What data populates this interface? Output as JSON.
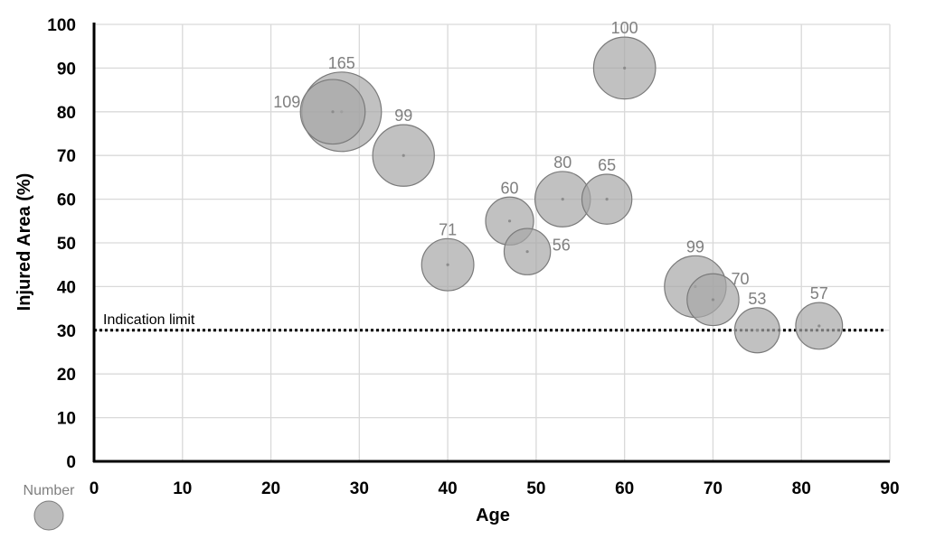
{
  "chart_data": {
    "type": "scatter",
    "subtype": "bubble",
    "xlabel": "Age",
    "ylabel": "Injured Area (%)",
    "xlim": [
      0,
      90
    ],
    "ylim": [
      0,
      100
    ],
    "x_ticks": [
      "0",
      "10",
      "20",
      "30",
      "40",
      "50",
      "60",
      "70",
      "80",
      "90"
    ],
    "y_ticks": [
      "0",
      "10",
      "20",
      "30",
      "40",
      "50",
      "60",
      "70",
      "80",
      "90",
      "100"
    ],
    "grid": true,
    "legend": {
      "title": "Number",
      "placement": "bottom-left"
    },
    "bubble_color": "#a6a6a6",
    "bubble_edge_color": "#7a7a7a",
    "series": [
      {
        "points": [
          {
            "x": 28,
            "y": 80,
            "size": 165,
            "label": "165"
          },
          {
            "x": 27,
            "y": 80,
            "size": 109,
            "label": "109"
          },
          {
            "x": 35,
            "y": 70,
            "size": 99,
            "label": "99"
          },
          {
            "x": 40,
            "y": 45,
            "size": 71,
            "label": "71"
          },
          {
            "x": 47,
            "y": 55,
            "size": 60,
            "label": "60"
          },
          {
            "x": 49,
            "y": 48,
            "size": 56,
            "label": "56"
          },
          {
            "x": 53,
            "y": 60,
            "size": 80,
            "label": "80"
          },
          {
            "x": 58,
            "y": 60,
            "size": 65,
            "label": "65"
          },
          {
            "x": 60,
            "y": 90,
            "size": 100,
            "label": "100"
          },
          {
            "x": 68,
            "y": 40,
            "size": 99,
            "label": "99"
          },
          {
            "x": 70,
            "y": 37,
            "size": 70,
            "label": "70"
          },
          {
            "x": 75,
            "y": 30,
            "size": 53,
            "label": "53"
          },
          {
            "x": 82,
            "y": 31,
            "size": 57,
            "label": "57"
          }
        ]
      }
    ],
    "reference_line": {
      "y": 30,
      "label": "Indication limit",
      "style": "dotted"
    }
  }
}
